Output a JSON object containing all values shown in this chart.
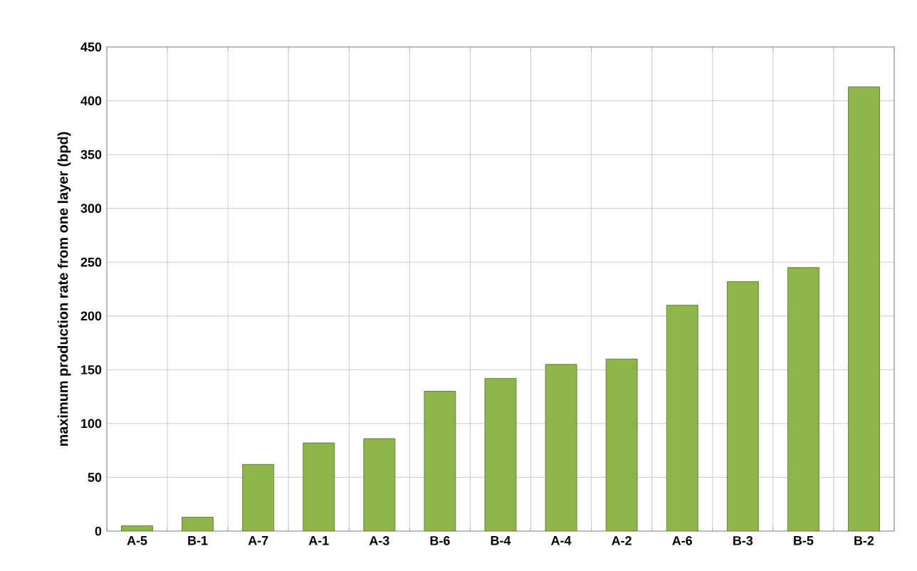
{
  "chart_data": {
    "type": "bar",
    "ylabel": "maximum production rate from one layer (bpd)",
    "categories": [
      "A-5",
      "B-1",
      "A-7",
      "A-1",
      "A-3",
      "B-6",
      "B-4",
      "A-4",
      "A-2",
      "A-6",
      "B-3",
      "B-5",
      "B-2"
    ],
    "values": [
      5,
      13,
      62,
      82,
      86,
      130,
      142,
      155,
      160,
      210,
      232,
      245,
      413
    ],
    "color": "#8db54a",
    "ylim": [
      0,
      450
    ],
    "yticks": [
      0,
      50,
      100,
      150,
      200,
      250,
      300,
      350,
      400,
      450
    ],
    "grid": true
  }
}
